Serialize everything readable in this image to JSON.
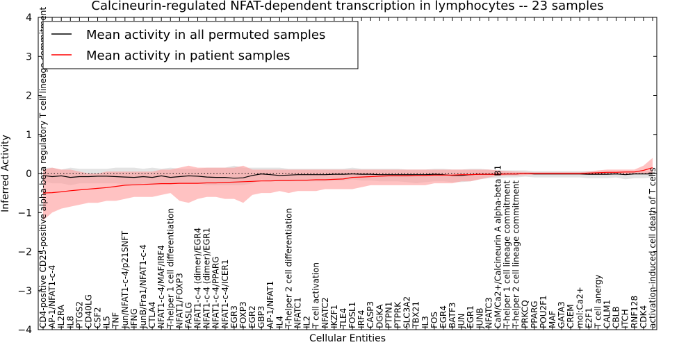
{
  "chart_data": {
    "type": "line",
    "title": "Calcineurin-regulated NFAT-dependent transcription in lymphocytes -- 23 samples",
    "xlabel": "Cellular Entities",
    "ylabel": "Inferred Activity",
    "ylim": [
      -4,
      4
    ],
    "yticks": [
      "4",
      "3",
      "2",
      "1",
      "0",
      "−1",
      "−2",
      "−3",
      "−4"
    ],
    "grid": false,
    "legend_position": "top-left",
    "categories": [
      "CD4-positive CD25-positive alpha-beta regulatory T cell lineage commitment",
      "AP-1/NFAT1-c-4",
      "IL2RA",
      "IL8",
      "PTGS2",
      "CD40LG",
      "CSF2",
      "IL5",
      "TNF",
      "Jun/NFAT1-c-4/p21SNFT",
      "IFNG",
      "JunB/Fra1/NFAT1-c-4",
      "CTLA4",
      "NFAT1-c-4/MAF/IRF4",
      "T-helper 1 cell differentiation",
      "NFAT1/FOXP3",
      "FASLG",
      "NFAT1-c-4 (dimer)/EGR4",
      "NFAT1-c-4 (dimer)/EGR1",
      "NFAT1-c-4/PPARG",
      "NFAT1-c-4/ICER1",
      "EGR3",
      "FOXP3",
      "EGR2",
      "GBP3",
      "AP-1/NFAT1",
      "IL4",
      "T-helper 2 cell differentiation",
      "NFATC1",
      "IL2",
      "T cell activation",
      "NFATC2",
      "IKZF1",
      "TLE4",
      "FOSL1",
      "IRF4",
      "CASP3",
      "DGKA",
      "PTPN1",
      "PTPRK",
      "SLC3A2",
      "TBX21",
      "IL3",
      "FOS",
      "EGR4",
      "BATF3",
      "JUN",
      "EGR1",
      "JUNB",
      "NFATC3",
      "CaM/Ca2+/Calcineurin A alpha-beta B1",
      "T-helper 1 cell lineage commitment",
      "T-helper 2 cell lineage commitment",
      "PRKCQ",
      "PPARG",
      "POU2F1",
      "MAF",
      "GATA3",
      "CREM",
      "mol:Ca2+",
      "E2F1",
      "T cell anergy",
      "CALM1",
      "CBLB",
      "ITCH",
      "RNF128",
      "CDK4",
      "activation-induced cell death of T cells"
    ],
    "series": [
      {
        "name": "Mean activity in all permuted samples",
        "color": "#000000",
        "band_color": "#cccccc",
        "values": [
          -0.05,
          -0.08,
          -0.06,
          -0.1,
          -0.08,
          -0.08,
          -0.07,
          -0.07,
          -0.08,
          -0.09,
          -0.1,
          -0.08,
          -0.1,
          -0.06,
          -0.1,
          -0.08,
          -0.06,
          -0.07,
          -0.09,
          -0.1,
          -0.1,
          -0.12,
          -0.11,
          -0.05,
          -0.01,
          -0.03,
          -0.05,
          -0.04,
          -0.03,
          -0.03,
          -0.03,
          -0.03,
          -0.02,
          -0.02,
          -0.01,
          -0.02,
          -0.02,
          -0.03,
          -0.03,
          -0.03,
          -0.03,
          -0.03,
          -0.03,
          -0.02,
          -0.03,
          -0.05,
          -0.05,
          -0.03,
          -0.02,
          -0.02,
          -0.02,
          -0.01,
          -0.01,
          0.0,
          -0.01,
          -0.01,
          -0.01,
          -0.01,
          -0.01,
          -0.01,
          -0.02,
          -0.02,
          -0.02,
          -0.01,
          -0.03,
          -0.01,
          -0.01,
          -0.01
        ],
        "lower": [
          -0.2,
          -0.25,
          -0.25,
          -0.3,
          -0.25,
          -0.25,
          -0.25,
          -0.25,
          -0.25,
          -0.28,
          -0.3,
          -0.25,
          -0.3,
          -0.25,
          -0.28,
          -0.25,
          -0.25,
          -0.25,
          -0.3,
          -0.3,
          -0.3,
          -0.3,
          -0.3,
          -0.25,
          -0.15,
          -0.2,
          -0.2,
          -0.2,
          -0.2,
          -0.2,
          -0.2,
          -0.2,
          -0.18,
          -0.18,
          -0.15,
          -0.18,
          -0.18,
          -0.2,
          -0.2,
          -0.2,
          -0.22,
          -0.25,
          -0.22,
          -0.2,
          -0.2,
          -0.22,
          -0.22,
          -0.2,
          -0.15,
          -0.12,
          -0.12,
          -0.1,
          -0.1,
          -0.08,
          -0.1,
          -0.1,
          -0.1,
          -0.1,
          -0.1,
          -0.1,
          -0.12,
          -0.12,
          -0.12,
          -0.1,
          -0.15,
          -0.12,
          -0.12,
          -0.1
        ],
        "upper": [
          0.15,
          0.15,
          0.1,
          0.15,
          0.12,
          0.12,
          0.12,
          0.12,
          0.15,
          0.15,
          0.15,
          0.12,
          0.15,
          0.12,
          0.15,
          0.12,
          0.12,
          0.12,
          0.15,
          0.15,
          0.15,
          0.2,
          0.15,
          0.15,
          0.15,
          0.15,
          0.15,
          0.12,
          0.12,
          0.12,
          0.12,
          0.12,
          0.12,
          0.12,
          0.15,
          0.12,
          0.12,
          0.12,
          0.12,
          0.12,
          0.1,
          0.1,
          0.1,
          0.12,
          0.12,
          0.1,
          0.1,
          0.12,
          0.12,
          0.1,
          0.08,
          0.08,
          0.08,
          0.08,
          0.06,
          0.06,
          0.06,
          0.06,
          0.06,
          0.06,
          0.06,
          0.06,
          0.06,
          0.06,
          0.06,
          0.06,
          0.06,
          0.05
        ]
      },
      {
        "name": "Mean activity in patient samples",
        "color": "#ff0000",
        "band_color": "#ff9999",
        "values": [
          -0.5,
          -0.49,
          -0.47,
          -0.44,
          -0.42,
          -0.4,
          -0.38,
          -0.36,
          -0.33,
          -0.3,
          -0.29,
          -0.28,
          -0.27,
          -0.26,
          -0.26,
          -0.25,
          -0.25,
          -0.25,
          -0.24,
          -0.24,
          -0.23,
          -0.22,
          -0.21,
          -0.2,
          -0.19,
          -0.19,
          -0.18,
          -0.18,
          -0.17,
          -0.17,
          -0.16,
          -0.16,
          -0.15,
          -0.14,
          -0.1,
          -0.09,
          -0.08,
          -0.07,
          -0.06,
          -0.06,
          -0.06,
          -0.05,
          -0.05,
          -0.04,
          -0.04,
          -0.04,
          -0.03,
          -0.03,
          -0.02,
          -0.02,
          -0.02,
          -0.01,
          -0.01,
          0.0,
          0.0,
          0.0,
          0.0,
          0.0,
          0.0,
          0.0,
          0.01,
          0.02,
          0.03,
          0.03,
          0.04,
          0.04,
          0.08,
          0.15
        ],
        "lower": [
          -1.2,
          -1.0,
          -0.9,
          -0.85,
          -0.8,
          -0.75,
          -0.75,
          -0.7,
          -0.7,
          -0.65,
          -0.6,
          -0.6,
          -0.6,
          -0.55,
          -0.5,
          -0.7,
          -0.75,
          -0.65,
          -0.6,
          -0.6,
          -0.65,
          -0.65,
          -0.75,
          -0.55,
          -0.5,
          -0.5,
          -0.45,
          -0.5,
          -0.45,
          -0.45,
          -0.45,
          -0.4,
          -0.4,
          -0.4,
          -0.4,
          -0.35,
          -0.3,
          -0.3,
          -0.3,
          -0.3,
          -0.3,
          -0.3,
          -0.3,
          -0.25,
          -0.25,
          -0.25,
          -0.2,
          -0.2,
          -0.15,
          -0.1,
          -0.06,
          -0.05,
          -0.05,
          -0.04,
          -0.03,
          -0.03,
          -0.03,
          -0.03,
          -0.03,
          -0.03,
          -0.03,
          -0.03,
          -0.03,
          -0.02,
          -0.02,
          -0.02,
          -0.02,
          -0.02
        ],
        "upper": [
          0.1,
          0.15,
          0.1,
          0.1,
          0.05,
          0.0,
          0.0,
          0.05,
          0.05,
          0.05,
          0.05,
          0.05,
          0.05,
          0.1,
          0.1,
          0.15,
          0.2,
          0.15,
          0.15,
          0.15,
          0.15,
          0.15,
          0.2,
          0.1,
          0.1,
          0.1,
          0.1,
          0.1,
          0.1,
          0.1,
          0.1,
          0.1,
          0.1,
          0.1,
          0.1,
          0.1,
          0.1,
          0.1,
          0.1,
          0.1,
          0.1,
          0.1,
          0.1,
          0.1,
          0.1,
          0.1,
          0.1,
          0.1,
          0.1,
          0.1,
          0.08,
          0.06,
          0.05,
          0.04,
          0.03,
          0.03,
          0.03,
          0.03,
          0.03,
          0.03,
          0.05,
          0.08,
          0.1,
          0.1,
          0.1,
          0.1,
          0.2,
          0.4
        ]
      }
    ],
    "reference_line": 0
  }
}
